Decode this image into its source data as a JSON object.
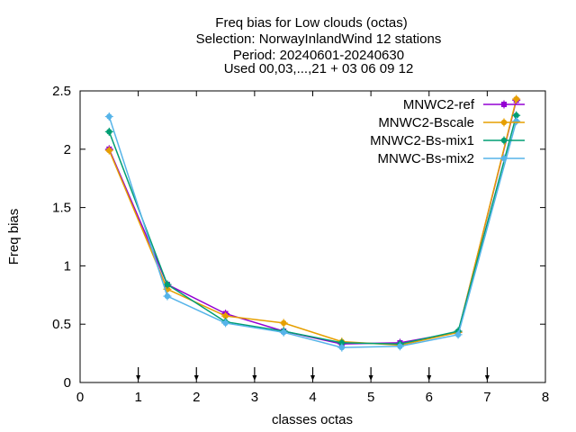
{
  "chart_data": {
    "type": "line",
    "title_lines": [
      "Freq bias  for Low clouds (octas)",
      "Selection: NorwayInlandWind     12 stations",
      "Period: 20240601-20240630",
      "Used 00,03,...,21 + 03 06 09 12"
    ],
    "xlabel": "classes octas",
    "ylabel": "Freq bias",
    "xlim": [
      0,
      8
    ],
    "ylim": [
      0,
      2.5
    ],
    "x_ticks": [
      "0",
      "1",
      "2",
      "3",
      "4",
      "5",
      "6",
      "7",
      "8"
    ],
    "y_ticks": [
      "0",
      "0.5",
      "1",
      "1.5",
      "2",
      "2.5"
    ],
    "grid": false,
    "legend_position": "top-right",
    "x": [
      0.5,
      1.5,
      2.5,
      3.5,
      4.5,
      5.5,
      6.5,
      7.5
    ],
    "series": [
      {
        "name": "MNWC2-ref",
        "color": "#9400d3",
        "marker": "square-cross",
        "values": [
          2.0,
          0.84,
          0.59,
          0.44,
          0.33,
          0.34,
          0.43,
          2.42
        ]
      },
      {
        "name": "MNWC2-Bscale",
        "color": "#e69f00",
        "marker": "circle-cross",
        "values": [
          1.99,
          0.8,
          0.57,
          0.51,
          0.35,
          0.32,
          0.43,
          2.43
        ]
      },
      {
        "name": "MNWC2-Bs-mix1",
        "color": "#009e73",
        "marker": "circle-cross",
        "values": [
          2.15,
          0.84,
          0.52,
          0.44,
          0.34,
          0.33,
          0.44,
          2.29
        ]
      },
      {
        "name": "MNWC-Bs-mix2",
        "color": "#56b4e9",
        "marker": "circle-cross",
        "values": [
          2.28,
          0.74,
          0.51,
          0.43,
          0.3,
          0.31,
          0.41,
          2.24
        ]
      }
    ],
    "reference_markers_x": [
      1,
      2,
      3,
      4,
      5,
      6,
      7
    ]
  }
}
